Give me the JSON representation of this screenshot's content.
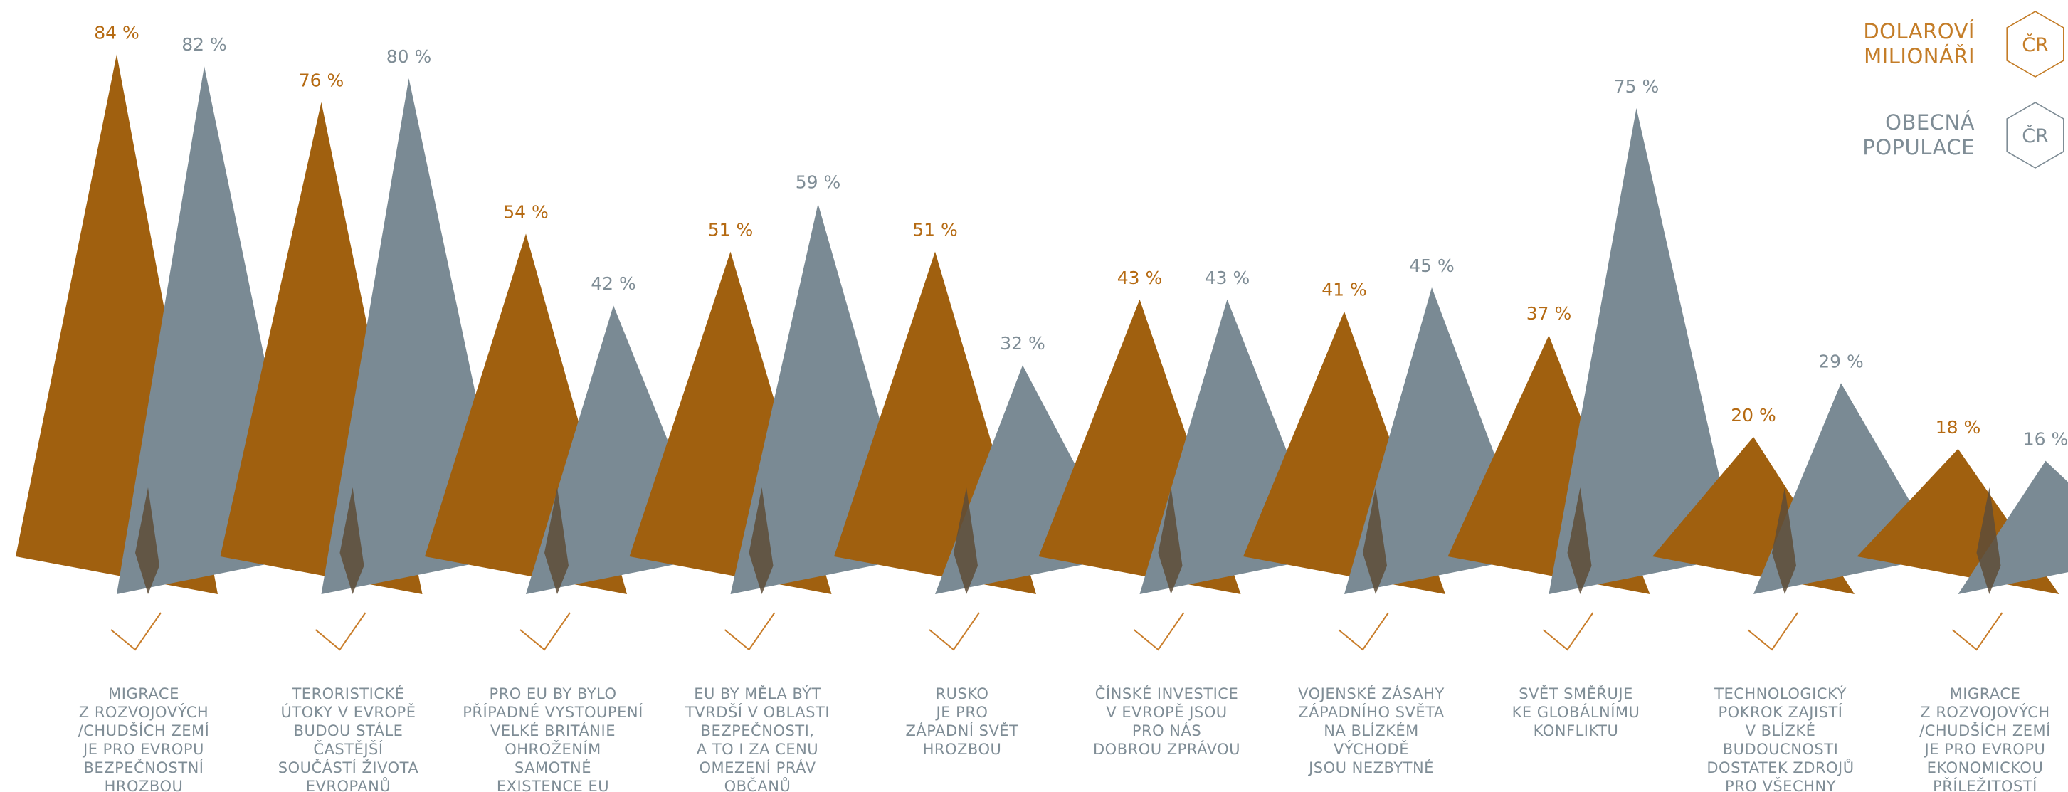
{
  "chart_data": {
    "type": "bar",
    "categories": [
      [
        "MIGRACE",
        "Z ROZVOJOVÝCH",
        "/CHUDŠÍCH ZEMÍ",
        "JE PRO EVROPU",
        "BEZPEČNOSTNÍ",
        "HROZBOU"
      ],
      [
        "TERORISTICKÉ",
        "ÚTOKY V EVROPĚ",
        "BUDOU STÁLE",
        "ČASTĚJŠÍ",
        "SOUČÁSTÍ ŽIVOTA",
        "EVROPANŮ"
      ],
      [
        "PRO EU BY BYLO",
        "PŘÍPADNÉ VYSTOUPENÍ",
        "VELKÉ BRITÁNIE",
        "OHROŽENÍM",
        "SAMOTNÉ",
        "EXISTENCE EU"
      ],
      [
        "EU BY MĚLA BÝT",
        "TVRDŠÍ V OBLASTI",
        "BEZPEČNOSTI,",
        "A TO I ZA CENU",
        "OMEZENÍ PRÁV",
        "OBČANŮ"
      ],
      [
        "RUSKO",
        "JE PRO",
        "ZÁPADNÍ SVĚT",
        "HROZBOU"
      ],
      [
        "ČÍNSKÉ INVESTICE",
        "V EVROPĚ JSOU",
        "PRO NÁS",
        "DOBROU ZPRÁVOU"
      ],
      [
        "VOJENSKÉ ZÁSAHY",
        "ZÁPADNÍHO SVĚTA",
        "NA BLÍZKÉM",
        "VÝCHODĚ",
        "JSOU NEZBYTNÉ"
      ],
      [
        "SVĚT SMĚŘUJE",
        "KE GLOBÁLNÍMU",
        "KONFLIKTU"
      ],
      [
        "TECHNOLOGICKÝ",
        "POKROK ZAJISTÍ",
        "V BLÍZKÉ",
        "BUDOUCNOSTI",
        "DOSTATEK ZDROJŮ",
        "PRO VŠECHNY"
      ],
      [
        "MIGRACE",
        "Z ROZVOJOVÝCH",
        "/CHUDŠÍCH ZEMÍ",
        "JE PRO EVROPU",
        "EKONOMICKOU",
        "PŘÍLEŽITOSTÍ"
      ]
    ],
    "series": [
      {
        "name": "DOLAROVÍ MILIONÁŘI ČR",
        "color": "#a0600f",
        "values": [
          84,
          76,
          54,
          51,
          51,
          43,
          41,
          37,
          20,
          18
        ]
      },
      {
        "name": "OBECNÁ POPULACE ČR",
        "color": "#7a8a94",
        "values": [
          82,
          80,
          42,
          59,
          32,
          43,
          45,
          75,
          29,
          16
        ]
      }
    ],
    "value_suffix": " %",
    "ylim": [
      0,
      100
    ],
    "checkmark_icon": "checkmark-icon",
    "checkmark_color": "#c97d2a",
    "overlap_color": "#5e4c37"
  },
  "legend": {
    "items": [
      {
        "lines": [
          "DOLAROVÍ",
          "MILIONÁŘI"
        ],
        "badge": "ČR",
        "color": "#c47d28"
      },
      {
        "lines": [
          "OBECNÁ",
          "POPULACE"
        ],
        "badge": "ČR",
        "color": "#7f8d96"
      }
    ]
  }
}
